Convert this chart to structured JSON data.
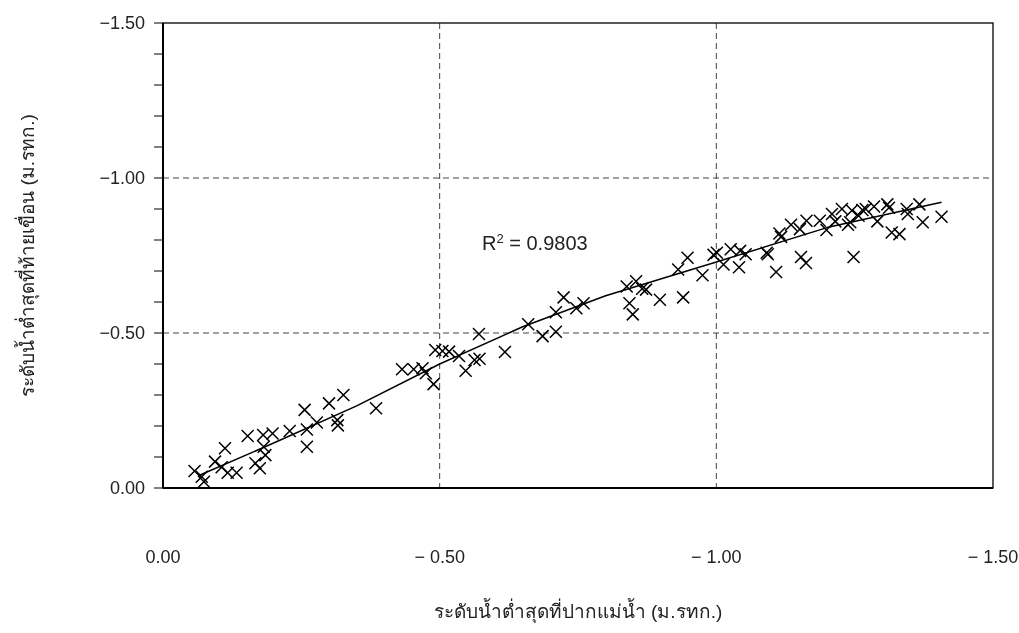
{
  "chart_data": {
    "type": "scatter",
    "xlabel": "ระดับน้ำต่ำสุดที่ปากแม่น้ำ (ม.รทก.)",
    "ylabel": "ระดับน้ำต่ำสุดที่ท้ายเขื่อน (ม.รทก.)",
    "annotations": [
      "R$^{2}$ = 0.9803"
    ],
    "xlim": [
      0,
      -1.5
    ],
    "ylim": [
      0,
      -1.5
    ],
    "xticks": [
      {
        "value": 0,
        "label": "0.00"
      },
      {
        "value": -0.5,
        "label": "− 0.50"
      },
      {
        "value": -1.0,
        "label": "− 1.00"
      },
      {
        "value": -1.5,
        "label": "− 1.50"
      }
    ],
    "yticks": [
      {
        "value": 0,
        "label": "0.00"
      },
      {
        "value": -0.1,
        "label": null
      },
      {
        "value": -0.2,
        "label": null
      },
      {
        "value": -0.3,
        "label": null
      },
      {
        "value": -0.4,
        "label": null
      },
      {
        "value": -0.5,
        "label": "−0.50"
      },
      {
        "value": -0.6,
        "label": null
      },
      {
        "value": -0.7,
        "label": null
      },
      {
        "value": -0.8,
        "label": null
      },
      {
        "value": -0.9,
        "label": null
      },
      {
        "value": -1.0,
        "label": "−1.00"
      },
      {
        "value": -1.1,
        "label": null
      },
      {
        "value": -1.2,
        "label": null
      },
      {
        "value": -1.3,
        "label": null
      },
      {
        "value": -1.4,
        "label": null
      },
      {
        "value": -1.5,
        "label": "−1.50"
      }
    ],
    "grid": true,
    "series": [
      {
        "color": "#000000",
        "marker": "cross",
        "x": [
          -0.057,
          -0.07,
          -0.074,
          -0.094,
          -0.106,
          -0.112,
          -0.117,
          -0.133,
          -0.153,
          -0.167,
          -0.175,
          -0.181,
          -0.182,
          -0.185,
          -0.198,
          -0.229,
          -0.256,
          -0.26,
          -0.26,
          -0.278,
          -0.3,
          -0.315,
          -0.316,
          -0.326,
          -0.385,
          -0.432,
          -0.453,
          -0.469,
          -0.475,
          -0.489,
          -0.492,
          -0.505,
          -0.517,
          -0.535,
          -0.547,
          -0.563,
          -0.572,
          -0.571,
          -0.618,
          -0.66,
          -0.686,
          -0.71,
          -0.71,
          -0.724,
          -0.747,
          -0.76,
          -0.838,
          -0.843,
          -0.849,
          -0.855,
          -0.866,
          -0.873,
          -0.898,
          -0.94,
          -0.931,
          -0.948,
          -0.975,
          -0.995,
          -1.001,
          -1.013,
          -1.026,
          -1.041,
          -1.043,
          -1.053,
          -1.091,
          -1.093,
          -1.108,
          -1.114,
          -1.117,
          -1.135,
          -1.151,
          -1.153,
          -1.162,
          -1.163,
          -1.187,
          -1.199,
          -1.209,
          -1.215,
          -1.227,
          -1.238,
          -1.242,
          -1.245,
          -1.248,
          -1.257,
          -1.264,
          -1.27,
          -1.285,
          -1.291,
          -1.309,
          -1.312,
          -1.317,
          -1.331,
          -1.344,
          -1.346,
          -1.367,
          -1.373,
          -1.407
        ],
        "values": [
          -0.055,
          -0.036,
          -0.02,
          -0.085,
          -0.067,
          -0.128,
          -0.049,
          -0.049,
          -0.168,
          -0.08,
          -0.064,
          -0.171,
          -0.133,
          -0.106,
          -0.176,
          -0.184,
          -0.252,
          -0.189,
          -0.133,
          -0.211,
          -0.273,
          -0.219,
          -0.202,
          -0.3,
          -0.257,
          -0.383,
          -0.383,
          -0.386,
          -0.37,
          -0.335,
          -0.445,
          -0.442,
          -0.44,
          -0.426,
          -0.378,
          -0.413,
          -0.417,
          -0.497,
          -0.439,
          -0.528,
          -0.49,
          -0.504,
          -0.567,
          -0.615,
          -0.58,
          -0.596,
          -0.65,
          -0.596,
          -0.56,
          -0.667,
          -0.643,
          -0.64,
          -0.607,
          -0.615,
          -0.705,
          -0.743,
          -0.686,
          -0.752,
          -0.759,
          -0.721,
          -0.77,
          -0.712,
          -0.765,
          -0.754,
          -0.759,
          -0.754,
          -0.697,
          -0.821,
          -0.81,
          -0.849,
          -0.835,
          -0.745,
          -0.726,
          -0.862,
          -0.862,
          -0.832,
          -0.884,
          -0.86,
          -0.9,
          -0.849,
          -0.857,
          -0.895,
          -0.745,
          -0.878,
          -0.897,
          -0.9,
          -0.908,
          -0.86,
          -0.915,
          -0.904,
          -0.824,
          -0.819,
          -0.9,
          -0.884,
          -0.915,
          -0.857,
          -0.875
        ]
      },
      {
        "type": "line",
        "color": "#000000",
        "marker": "none",
        "line_style": "solid",
        "x": [
          -0.067,
          -0.2,
          -0.35,
          -0.5,
          -0.65,
          -0.8,
          -1.0,
          -1.2,
          -1.407
        ],
        "values": [
          -0.042,
          -0.145,
          -0.265,
          -0.4,
          -0.52,
          -0.62,
          -0.729,
          -0.84,
          -0.922
        ]
      }
    ]
  }
}
